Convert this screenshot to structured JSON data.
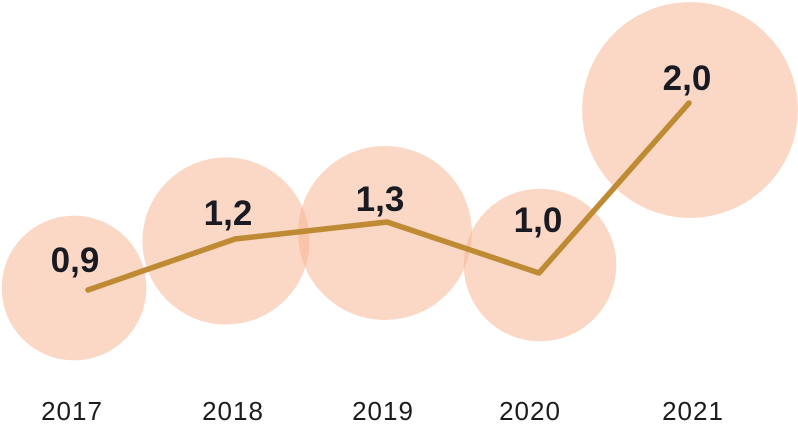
{
  "chart_data": {
    "type": "line",
    "subtype": "line-with-area-proportional-bubbles",
    "title": "",
    "xlabel": "",
    "ylabel": "",
    "categories": [
      "2017",
      "2018",
      "2019",
      "2020",
      "2021"
    ],
    "values": [
      0.9,
      1.2,
      1.3,
      1.0,
      2.0
    ],
    "point_labels": [
      "0,9",
      "1,2",
      "1,3",
      "1,0",
      "2,0"
    ],
    "decimal_separator": ",",
    "layout_hints": {
      "grid": false,
      "y_axis_visible": false,
      "x_axis_line_visible": false,
      "legend": "none",
      "bubble_area_proportional_to_value": true
    },
    "colors": {
      "background": "#FFFFFF",
      "bubble_fill": "#F7B18D",
      "bubble_opacity": 0.5,
      "line": "#BE8A33",
      "value_label_text": "#1A1A22",
      "category_label_text": "#1C1C1C"
    }
  }
}
